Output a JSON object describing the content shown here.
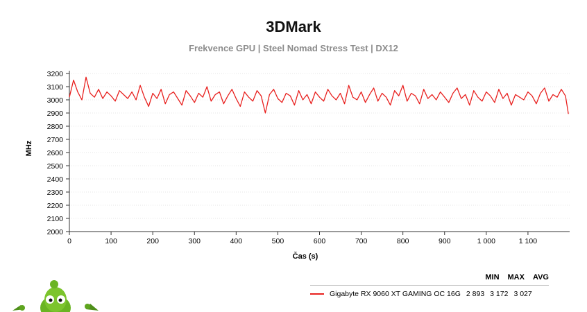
{
  "chart_data": {
    "type": "line",
    "title": "3DMark",
    "subtitle": "Frekvence GPU | Steel Nomad Stress Test | DX12",
    "xlabel": "Čas (s)",
    "ylabel": "MHz",
    "xlim": [
      0,
      1200
    ],
    "ylim": [
      2000,
      3200
    ],
    "xticks": [
      0,
      100,
      200,
      300,
      400,
      500,
      600,
      700,
      800,
      900,
      1000,
      1100
    ],
    "xtick_labels": [
      "0",
      "100",
      "200",
      "300",
      "400",
      "500",
      "600",
      "700",
      "800",
      "900",
      "1 000",
      "1 100"
    ],
    "yticks": [
      2000,
      2100,
      2200,
      2300,
      2400,
      2500,
      2600,
      2700,
      2800,
      2900,
      3000,
      3100,
      3200
    ],
    "ytick_labels": [
      "2000",
      "2100",
      "2200",
      "2300",
      "2400",
      "2500",
      "2600",
      "2700",
      "2800",
      "2900",
      "3000",
      "3100",
      "3200"
    ],
    "grid": true,
    "legend_position": "bottom-right",
    "legend_columns": [
      "MIN",
      "MAX",
      "AVG"
    ],
    "series": [
      {
        "name": "Gigabyte RX 9060 XT GAMING OC 16G",
        "color": "#e8201e",
        "min": "2 893",
        "max": "3 172",
        "avg": "3 027",
        "x": [
          0,
          10,
          20,
          30,
          40,
          50,
          60,
          70,
          80,
          90,
          100,
          110,
          120,
          130,
          140,
          150,
          160,
          170,
          180,
          190,
          200,
          210,
          220,
          230,
          240,
          250,
          260,
          270,
          280,
          290,
          300,
          310,
          320,
          330,
          340,
          350,
          360,
          370,
          380,
          390,
          400,
          410,
          420,
          430,
          440,
          450,
          460,
          470,
          480,
          490,
          500,
          510,
          520,
          530,
          540,
          550,
          560,
          570,
          580,
          590,
          600,
          610,
          620,
          630,
          640,
          650,
          660,
          670,
          680,
          690,
          700,
          710,
          720,
          730,
          740,
          750,
          760,
          770,
          780,
          790,
          800,
          810,
          820,
          830,
          840,
          850,
          860,
          870,
          880,
          890,
          900,
          910,
          920,
          930,
          940,
          950,
          960,
          970,
          980,
          990,
          1000,
          1010,
          1020,
          1030,
          1040,
          1050,
          1060,
          1070,
          1080,
          1090,
          1100,
          1110,
          1120,
          1130,
          1140,
          1150,
          1160,
          1170,
          1180,
          1190,
          1197
        ],
        "y": [
          3020,
          3150,
          3060,
          3000,
          3172,
          3050,
          3020,
          3080,
          3010,
          3060,
          3030,
          2990,
          3070,
          3040,
          3010,
          3060,
          3000,
          3110,
          3020,
          2950,
          3050,
          3010,
          3080,
          2970,
          3040,
          3060,
          3010,
          2960,
          3070,
          3030,
          2980,
          3050,
          3020,
          3100,
          2990,
          3040,
          3060,
          2970,
          3030,
          3080,
          3010,
          2950,
          3060,
          3020,
          2990,
          3070,
          3030,
          2900,
          3040,
          3080,
          3010,
          2980,
          3050,
          3030,
          2960,
          3070,
          3000,
          3040,
          2970,
          3060,
          3020,
          2990,
          3080,
          3030,
          3000,
          3050,
          2970,
          3110,
          3020,
          3000,
          3060,
          2980,
          3040,
          3090,
          2990,
          3050,
          3020,
          2960,
          3070,
          3030,
          3110,
          2990,
          3050,
          3030,
          2970,
          3080,
          3010,
          3040,
          3000,
          3060,
          3020,
          2980,
          3050,
          3090,
          3010,
          3040,
          2960,
          3070,
          3020,
          2990,
          3060,
          3030,
          2980,
          3080,
          3010,
          3050,
          2960,
          3040,
          3020,
          3000,
          3060,
          3030,
          2970,
          3050,
          3090,
          2990,
          3040,
          3020,
          3080,
          3030,
          2893
        ]
      }
    ]
  }
}
